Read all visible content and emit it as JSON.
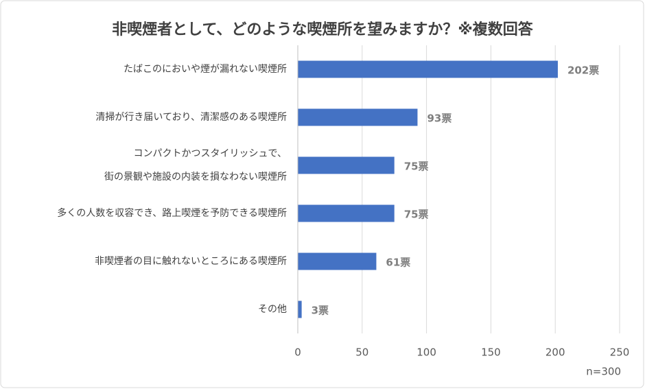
{
  "chart_data": {
    "type": "bar",
    "orientation": "horizontal",
    "title": "非喫煙者として、どのような喫煙所を望みますか？※複数回答",
    "note": "n=300",
    "categories": [
      [
        "たばこのにおいや煙が漏れない喫煙所"
      ],
      [
        "清掃が行き届いており、清潔感のある喫煙所"
      ],
      [
        "コンパクトかつスタイリッシュで、",
        "街の景観や施設の内装を損なわない喫煙所"
      ],
      [
        "多くの人数を収容でき、路上喫煙を予防できる喫煙所"
      ],
      [
        "非喫煙者の目に触れないところにある喫煙所"
      ],
      [
        "その他"
      ]
    ],
    "values": [
      202,
      93,
      75,
      75,
      61,
      3
    ],
    "value_labels": [
      "202票",
      "93票",
      "75票",
      "75票",
      "61票",
      "3票"
    ],
    "color": "#4472c4",
    "xlim": [
      0,
      250
    ],
    "xticks": [
      0,
      50,
      100,
      150,
      200,
      250
    ],
    "grid": true
  }
}
